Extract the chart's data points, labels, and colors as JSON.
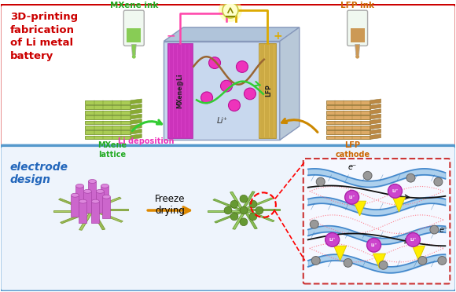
{
  "top_border_color": "#cc0000",
  "bottom_border_color": "#5599cc",
  "top_label": "3D-printing\nfabrication\nof Li metal\nbattery",
  "top_label_color": "#cc0000",
  "bottom_label": "electrode\ndesign",
  "bottom_label_color": "#2266bb",
  "mxene_ink_label": "MXene ink",
  "lfp_ink_label": "LFP ink",
  "mxene_lattice_label": "MXene\nlattice",
  "lfp_cathode_label": "LFP\ncathode",
  "li_deposition_label": "Li deposition",
  "freeze_label": "Freeze",
  "drying_label": "drying",
  "li_plus_label": "Li⁺",
  "mxene_at_li_label": "MXene@Li",
  "lfp_label": "LFP",
  "green_ink": "#88cc55",
  "tan_ink": "#cc9955",
  "green_lattice": "#aacc55",
  "tan_lattice": "#ddaa66",
  "magenta_elec": "#dd44cc",
  "tan_elec": "#ccaa55",
  "battery_front": "#ccd8ee",
  "battery_top": "#b0c4dc",
  "battery_right": "#b8c8d8",
  "ion_color": "#ee33bb",
  "pink_wire": "#ff44aa",
  "gold_wire": "#ddaa00",
  "green_wave": "#33cc33",
  "brown_wave": "#aa7733",
  "porous_green": "#99bb66",
  "porous_dark": "#7a9955",
  "purple_cyl": "#cc66cc",
  "zoom_blue": "#55aadd",
  "zoom_pink": "#ff8899",
  "zoom_black": "#222222",
  "zoom_yellow": "#ffee00",
  "zoom_purple": "#cc44cc",
  "zoom_gray": "#888899"
}
